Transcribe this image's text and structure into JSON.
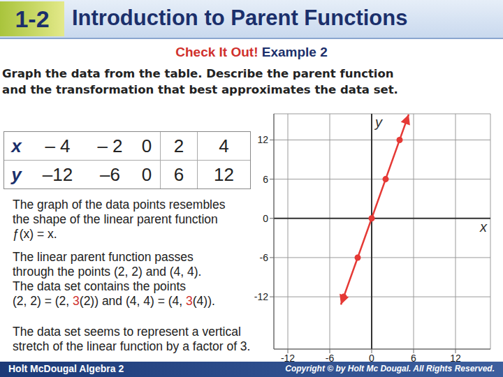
{
  "header": {
    "number": "1-2",
    "title": "Introduction to Parent Functions"
  },
  "subtitle": {
    "lead": "Check It Out!",
    "rest": " Example 2"
  },
  "prompt": [
    "Graph the data from the table. Describe the parent function",
    "and the transformation that best approximates the data set."
  ],
  "table": {
    "rows": [
      [
        "x",
        "– 4",
        "– 2",
        "0",
        "2",
        "4"
      ],
      [
        "y",
        "–12",
        "–6",
        "0",
        "6",
        "12"
      ]
    ]
  },
  "paragraphs": [
    [
      [
        {
          "text": "The graph of the data points resembles"
        }
      ],
      [
        {
          "text": "the shape of the linear parent function"
        }
      ],
      [
        {
          "text": "ƒ(x) = x."
        }
      ]
    ],
    [
      [
        {
          "text": "The linear parent function passes"
        }
      ],
      [
        {
          "text": "through the points (2, 2) and (4, 4)."
        }
      ],
      [
        {
          "text": "The data set contains the points"
        }
      ],
      [
        {
          "text": "(2, 2) = (2, "
        },
        {
          "text": "3",
          "color": "#d0312d"
        },
        {
          "text": "(2)) and (4, 4) = (4, "
        },
        {
          "text": "3",
          "color": "#d0312d"
        },
        {
          "text": "(4))."
        }
      ]
    ],
    [
      [
        {
          "text": "The data set seems to represent a vertical"
        }
      ],
      [
        {
          "text": "stretch of the linear function by a factor of 3."
        }
      ]
    ]
  ],
  "footer": {
    "left": "Holt McDougal Algebra 2",
    "right": "Copyright © by Holt Mc Dougal. All Rights Reserved."
  },
  "chart_data": {
    "type": "scatter",
    "xlabel": "x",
    "ylabel": "y",
    "xlim": [
      -14,
      17
    ],
    "xticks": [
      -12,
      -6,
      0,
      6,
      12
    ],
    "ylim": [
      -20,
      16
    ],
    "yticks": [
      -12,
      -6,
      0,
      6,
      12
    ],
    "grid": true,
    "series": [
      {
        "type": "line",
        "color": "#e53935",
        "marker": "arrow",
        "x": [
          -4.4,
          5.3
        ],
        "values": [
          -13.2,
          15.9
        ]
      },
      {
        "type": "scatter",
        "color": "#e53935",
        "marker": "circle",
        "x": [
          -4,
          -2,
          0,
          2,
          4
        ],
        "values": [
          -12,
          -6,
          0,
          6,
          12
        ]
      }
    ]
  }
}
